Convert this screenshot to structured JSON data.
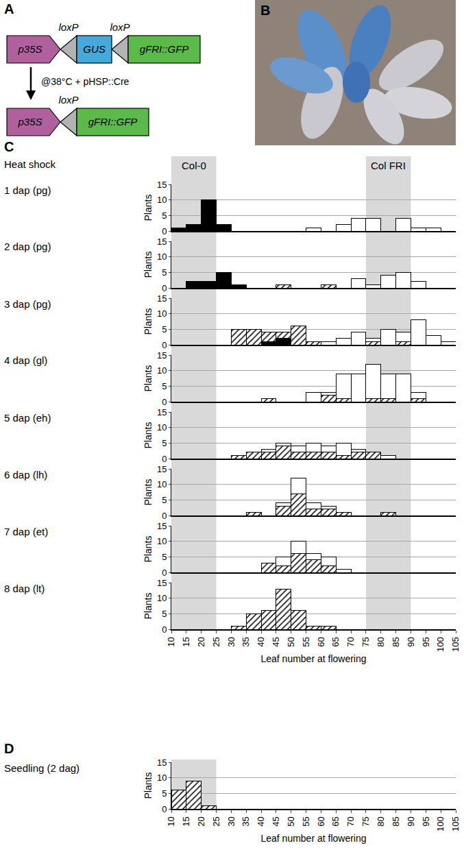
{
  "diagram": {
    "letter": "A",
    "site_label": "loxP",
    "step": "@38°C + pHSP::Cre",
    "before": [
      {
        "label": "p35S",
        "shape": "promoter",
        "color": "#b0609c"
      },
      {
        "shape": "site",
        "color": "#b3b3b3"
      },
      {
        "label": "GUS",
        "shape": "gene",
        "color": "#46a9dc"
      },
      {
        "shape": "site",
        "color": "#b3b3b3"
      },
      {
        "label": "gFRI::GFP",
        "shape": "gene",
        "color": "#5cba4a"
      }
    ],
    "after": [
      {
        "label": "p35S",
        "shape": "promoter",
        "color": "#b0609c"
      },
      {
        "shape": "site",
        "color": "#b3b3b3"
      },
      {
        "label": "gFRI::GFP",
        "shape": "gene",
        "color": "#5cba4a"
      }
    ]
  },
  "photo": {
    "letter": "B"
  },
  "panel_C": {
    "letter": "C",
    "header": "Heat shock",
    "regions": [
      {
        "label": "Col-0",
        "range": [
          10,
          25
        ]
      },
      {
        "label": "Col FRI",
        "range": [
          75,
          90
        ]
      }
    ]
  },
  "panel_D": {
    "letter": "D",
    "regions": [
      {
        "range": [
          10,
          25
        ]
      }
    ]
  },
  "chart_data": [
    {
      "type": "bar",
      "stacked": true,
      "title": "1 dap (pg)",
      "y_label": "Plants",
      "grid": true,
      "tick_labels": "y",
      "bins": [
        10,
        15,
        20,
        25,
        30,
        35,
        40,
        45,
        50,
        55,
        60,
        65,
        70,
        75,
        80,
        85,
        90,
        95,
        100,
        105
      ],
      "xlim": [
        10,
        105
      ],
      "xticks": [
        10,
        15,
        20,
        25,
        30,
        35,
        40,
        45,
        50,
        55,
        60,
        65,
        70,
        75,
        80,
        85,
        90,
        95,
        100,
        105
      ],
      "ylim": [
        0,
        15
      ],
      "yticks": [
        0,
        5,
        10,
        15
      ],
      "series": [
        {
          "color": "#000000",
          "marker": "solid",
          "values": [
            1,
            2,
            10,
            2,
            0,
            0,
            0,
            0,
            0,
            0,
            0,
            0,
            0,
            0,
            0,
            0,
            0,
            0,
            0
          ]
        },
        {
          "color": "#ffffff",
          "marker": "solid",
          "values": [
            0,
            0,
            0,
            0,
            0,
            0,
            0,
            0,
            0,
            1,
            0,
            2,
            4,
            4,
            0,
            4,
            1,
            1,
            0
          ]
        }
      ]
    },
    {
      "type": "bar",
      "stacked": true,
      "title": "2 dap (pg)",
      "y_label": "Plants",
      "grid": true,
      "tick_labels": "y",
      "bins": [
        10,
        15,
        20,
        25,
        30,
        35,
        40,
        45,
        50,
        55,
        60,
        65,
        70,
        75,
        80,
        85,
        90,
        95,
        100,
        105
      ],
      "xlim": [
        10,
        105
      ],
      "xticks": [
        10,
        15,
        20,
        25,
        30,
        35,
        40,
        45,
        50,
        55,
        60,
        65,
        70,
        75,
        80,
        85,
        90,
        95,
        100,
        105
      ],
      "ylim": [
        0,
        15
      ],
      "yticks": [
        0,
        5,
        10,
        15
      ],
      "series": [
        {
          "color": "#000000",
          "marker": "solid",
          "values": [
            0,
            2,
            2,
            5,
            1,
            0,
            0,
            0,
            0,
            0,
            0,
            0,
            0,
            0,
            0,
            0,
            0,
            0,
            0
          ]
        },
        {
          "color": "#ffffff",
          "marker": "hatched",
          "values": [
            0,
            0,
            0,
            0,
            0,
            0,
            0,
            1,
            0,
            0,
            1,
            0,
            0,
            0,
            0,
            0,
            0,
            0,
            0
          ]
        },
        {
          "color": "#ffffff",
          "marker": "solid",
          "values": [
            0,
            0,
            0,
            0,
            0,
            0,
            0,
            0,
            0,
            0,
            0,
            0,
            3,
            1,
            4,
            5,
            2,
            0,
            0
          ]
        }
      ]
    },
    {
      "type": "bar",
      "stacked": true,
      "title": "3 dap (pg)",
      "y_label": "Plants",
      "grid": true,
      "tick_labels": "y",
      "bins": [
        10,
        15,
        20,
        25,
        30,
        35,
        40,
        45,
        50,
        55,
        60,
        65,
        70,
        75,
        80,
        85,
        90,
        95,
        100,
        105
      ],
      "xlim": [
        10,
        105
      ],
      "xticks": [
        10,
        15,
        20,
        25,
        30,
        35,
        40,
        45,
        50,
        55,
        60,
        65,
        70,
        75,
        80,
        85,
        90,
        95,
        100,
        105
      ],
      "ylim": [
        0,
        15
      ],
      "yticks": [
        0,
        5,
        10,
        15
      ],
      "series": [
        {
          "color": "#000000",
          "marker": "solid",
          "values": [
            0,
            0,
            0,
            0,
            0,
            0,
            1,
            2,
            0,
            0,
            0,
            0,
            0,
            0,
            0,
            0,
            0,
            0,
            0
          ]
        },
        {
          "color": "#ffffff",
          "marker": "hatched",
          "values": [
            0,
            0,
            0,
            0,
            5,
            5,
            3,
            2,
            6,
            1,
            0,
            0,
            0,
            1,
            0,
            1,
            0,
            0,
            0
          ]
        },
        {
          "color": "#ffffff",
          "marker": "solid",
          "values": [
            0,
            0,
            0,
            0,
            0,
            0,
            0,
            0,
            0,
            0,
            1,
            2,
            4,
            1,
            5,
            3,
            8,
            3,
            1
          ]
        }
      ]
    },
    {
      "type": "bar",
      "stacked": true,
      "title": "4 dap (gl)",
      "y_label": "Plants",
      "grid": true,
      "tick_labels": "y",
      "bins": [
        10,
        15,
        20,
        25,
        30,
        35,
        40,
        45,
        50,
        55,
        60,
        65,
        70,
        75,
        80,
        85,
        90,
        95,
        100,
        105
      ],
      "xlim": [
        10,
        105
      ],
      "xticks": [
        10,
        15,
        20,
        25,
        30,
        35,
        40,
        45,
        50,
        55,
        60,
        65,
        70,
        75,
        80,
        85,
        90,
        95,
        100,
        105
      ],
      "ylim": [
        0,
        15
      ],
      "yticks": [
        0,
        5,
        10,
        15
      ],
      "series": [
        {
          "color": "#ffffff",
          "marker": "hatched",
          "values": [
            0,
            0,
            0,
            0,
            0,
            0,
            1,
            0,
            0,
            0,
            2,
            1,
            0,
            1,
            1,
            0,
            1,
            0,
            0
          ]
        },
        {
          "color": "#ffffff",
          "marker": "solid",
          "values": [
            0,
            0,
            0,
            0,
            0,
            0,
            0,
            0,
            0,
            3,
            1,
            8,
            9,
            11,
            8,
            9,
            2,
            0,
            0
          ]
        }
      ]
    },
    {
      "type": "bar",
      "stacked": true,
      "title": "5 dap (eh)",
      "y_label": "Plants",
      "grid": true,
      "tick_labels": "y",
      "bins": [
        10,
        15,
        20,
        25,
        30,
        35,
        40,
        45,
        50,
        55,
        60,
        65,
        70,
        75,
        80,
        85,
        90,
        95,
        100,
        105
      ],
      "xlim": [
        10,
        105
      ],
      "xticks": [
        10,
        15,
        20,
        25,
        30,
        35,
        40,
        45,
        50,
        55,
        60,
        65,
        70,
        75,
        80,
        85,
        90,
        95,
        100,
        105
      ],
      "ylim": [
        0,
        15
      ],
      "yticks": [
        0,
        5,
        10,
        15
      ],
      "series": [
        {
          "color": "#ffffff",
          "marker": "hatched",
          "values": [
            0,
            0,
            0,
            0,
            1,
            2,
            2,
            4,
            2,
            2,
            2,
            1,
            2,
            2,
            0,
            0,
            0,
            0,
            0
          ]
        },
        {
          "color": "#ffffff",
          "marker": "solid",
          "values": [
            0,
            0,
            0,
            0,
            0,
            0,
            1,
            1,
            2,
            3,
            2,
            4,
            1,
            0,
            1,
            0,
            0,
            0,
            0
          ]
        }
      ]
    },
    {
      "type": "bar",
      "stacked": true,
      "title": "6 dap (lh)",
      "y_label": "Plants",
      "grid": true,
      "tick_labels": "y",
      "bins": [
        10,
        15,
        20,
        25,
        30,
        35,
        40,
        45,
        50,
        55,
        60,
        65,
        70,
        75,
        80,
        85,
        90,
        95,
        100,
        105
      ],
      "xlim": [
        10,
        105
      ],
      "xticks": [
        10,
        15,
        20,
        25,
        30,
        35,
        40,
        45,
        50,
        55,
        60,
        65,
        70,
        75,
        80,
        85,
        90,
        95,
        100,
        105
      ],
      "ylim": [
        0,
        15
      ],
      "yticks": [
        0,
        5,
        10,
        15
      ],
      "series": [
        {
          "color": "#ffffff",
          "marker": "hatched",
          "values": [
            0,
            0,
            0,
            0,
            0,
            1,
            0,
            3,
            7,
            2,
            2,
            1,
            0,
            0,
            1,
            0,
            0,
            0,
            0
          ]
        },
        {
          "color": "#ffffff",
          "marker": "solid",
          "values": [
            0,
            0,
            0,
            0,
            0,
            0,
            0,
            1,
            5,
            2,
            1,
            0,
            0,
            0,
            0,
            0,
            0,
            0,
            0
          ]
        }
      ]
    },
    {
      "type": "bar",
      "stacked": true,
      "title": "7 dap (et)",
      "y_label": "Plants",
      "grid": true,
      "tick_labels": "y",
      "bins": [
        10,
        15,
        20,
        25,
        30,
        35,
        40,
        45,
        50,
        55,
        60,
        65,
        70,
        75,
        80,
        85,
        90,
        95,
        100,
        105
      ],
      "xlim": [
        10,
        105
      ],
      "xticks": [
        10,
        15,
        20,
        25,
        30,
        35,
        40,
        45,
        50,
        55,
        60,
        65,
        70,
        75,
        80,
        85,
        90,
        95,
        100,
        105
      ],
      "ylim": [
        0,
        15
      ],
      "yticks": [
        0,
        5,
        10,
        15
      ],
      "series": [
        {
          "color": "#ffffff",
          "marker": "hatched",
          "values": [
            0,
            0,
            0,
            0,
            0,
            0,
            3,
            2,
            6,
            4,
            2,
            0,
            0,
            0,
            0,
            0,
            0,
            0,
            0
          ]
        },
        {
          "color": "#ffffff",
          "marker": "solid",
          "values": [
            0,
            0,
            0,
            0,
            0,
            0,
            0,
            3,
            4,
            2,
            3,
            1,
            0,
            0,
            0,
            0,
            0,
            0,
            0
          ]
        }
      ]
    },
    {
      "type": "bar",
      "stacked": true,
      "title": "8 dap (lt)",
      "y_label": "Plants",
      "x_label": "Leaf number at flowering",
      "grid": true,
      "bins": [
        10,
        15,
        20,
        25,
        30,
        35,
        40,
        45,
        50,
        55,
        60,
        65,
        70,
        75,
        80,
        85,
        90,
        95,
        100,
        105
      ],
      "xlim": [
        10,
        105
      ],
      "xticks": [
        10,
        15,
        20,
        25,
        30,
        35,
        40,
        45,
        50,
        55,
        60,
        65,
        70,
        75,
        80,
        85,
        90,
        95,
        100,
        105
      ],
      "ylim": [
        0,
        15
      ],
      "yticks": [
        0,
        5,
        10,
        15
      ],
      "series": [
        {
          "color": "#ffffff",
          "marker": "hatched",
          "values": [
            0,
            0,
            0,
            0,
            1,
            5,
            6,
            13,
            6,
            1,
            1,
            0,
            0,
            0,
            0,
            0,
            0,
            0,
            0
          ]
        }
      ]
    },
    {
      "type": "bar",
      "stacked": true,
      "title": "Seedling (2 dag)",
      "y_label": "Plants",
      "x_label": "Leaf number at flowering",
      "grid": true,
      "bins": [
        10,
        15,
        20,
        25,
        30,
        35,
        40,
        45,
        50,
        55,
        60,
        65,
        70,
        75,
        80,
        85,
        90,
        95,
        100,
        105
      ],
      "xlim": [
        10,
        105
      ],
      "xticks": [
        10,
        15,
        20,
        25,
        30,
        35,
        40,
        45,
        50,
        55,
        60,
        65,
        70,
        75,
        80,
        85,
        90,
        95,
        100,
        105
      ],
      "ylim": [
        0,
        15
      ],
      "yticks": [
        0,
        5,
        10,
        15
      ],
      "series": [
        {
          "color": "#ffffff",
          "marker": "hatched",
          "values": [
            6,
            9,
            1,
            0,
            0,
            0,
            0,
            0,
            0,
            0,
            0,
            0,
            0,
            0,
            0,
            0,
            0,
            0,
            0
          ]
        }
      ]
    }
  ]
}
